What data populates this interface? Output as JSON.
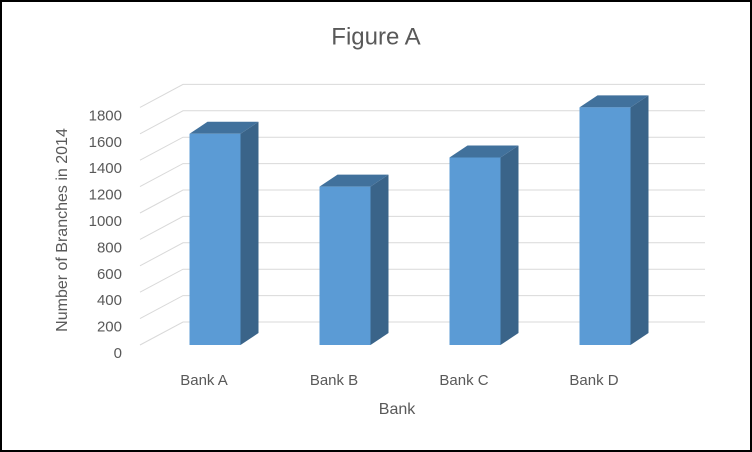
{
  "chart_data": {
    "type": "bar3d",
    "title": "Figure A",
    "x_label": "Bank",
    "y_label": "Number of Branches in 2014",
    "categories": [
      "Bank A",
      "Bank B",
      "Bank C",
      "Bank D"
    ],
    "values": [
      1600,
      1200,
      1420,
      1800
    ],
    "color": "#5b9bd5",
    "ylim": [
      0,
      1800
    ],
    "yticks": [
      0,
      200,
      400,
      600,
      800,
      1000,
      1200,
      1400,
      1600,
      1800
    ],
    "grid": true
  }
}
